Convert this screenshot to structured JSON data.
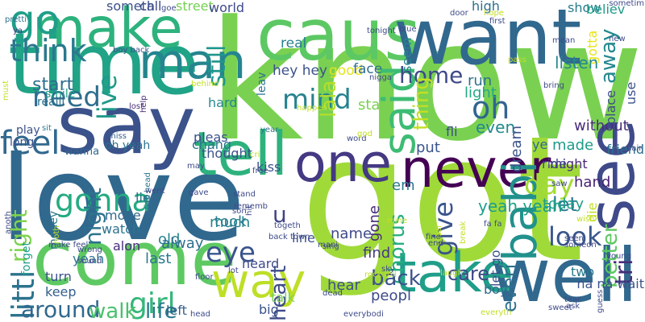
{
  "words": [
    {
      "text": "know",
      "color": "#7ad151"
    },
    {
      "text": "got",
      "color": "#a0da39"
    },
    {
      "text": "love",
      "color": "#31688e"
    },
    {
      "text": "time",
      "color": "#20a386"
    },
    {
      "text": "caus",
      "color": "#5cc863"
    },
    {
      "text": "want",
      "color": "#31688e"
    },
    {
      "text": "say",
      "color": "#3b528b"
    },
    {
      "text": "come",
      "color": "#5ec962"
    },
    {
      "text": "make",
      "color": "#2db27d"
    },
    {
      "text": "see",
      "color": "#3e4a89"
    },
    {
      "text": "well",
      "color": "#31688e"
    },
    {
      "text": "tell",
      "color": "#2db27d"
    },
    {
      "text": "one",
      "color": "#443983"
    },
    {
      "text": "never",
      "color": "#440154"
    },
    {
      "text": "take",
      "color": "#1f9e89"
    },
    {
      "text": "go",
      "color": "#1f9e89"
    },
    {
      "text": "man",
      "color": "#25858e"
    },
    {
      "text": "said",
      "color": "#3dbc74"
    },
    {
      "text": "babi",
      "color": "#21918c"
    },
    {
      "text": "way",
      "color": "#bddf26"
    },
    {
      "text": "gonna",
      "color": "#25ab82"
    },
    {
      "text": "think",
      "color": "#2a788e"
    },
    {
      "text": "mind",
      "color": "#26828e"
    },
    {
      "text": "need",
      "color": "#2e6e8e"
    },
    {
      "text": "feel",
      "color": "#31688e"
    },
    {
      "text": "oh",
      "color": "#32658e"
    },
    {
      "text": "day",
      "color": "#a5db36"
    },
    {
      "text": "give",
      "color": "#3a548c"
    },
    {
      "text": "look",
      "color": "#39568c"
    },
    {
      "text": "eye",
      "color": "#3a548c"
    },
    {
      "text": "girl",
      "color": "#35b779"
    },
    {
      "text": "right",
      "color": "#7fd34e"
    },
    {
      "text": "night",
      "color": "#2c738e"
    },
    {
      "text": "live",
      "color": "#1f9a8a"
    },
    {
      "text": "littl",
      "color": "#2c738e"
    },
    {
      "text": "around",
      "color": "#31688e"
    },
    {
      "text": "walk",
      "color": "#4ac16d"
    },
    {
      "text": "life",
      "color": "#2a788e"
    },
    {
      "text": "still",
      "color": "#1f968b"
    },
    {
      "text": "home",
      "color": "#3e4a89"
    },
    {
      "text": "start",
      "color": "#2e6e8e"
    },
    {
      "text": "better",
      "color": "#5ec962"
    },
    {
      "text": "chorus",
      "color": "#26ad81"
    },
    {
      "text": "let",
      "color": "#2b748e"
    },
    {
      "text": "care",
      "color": "#3e4989"
    },
    {
      "text": "back",
      "color": "#3b518b"
    },
    {
      "text": "tri",
      "color": "#472c7a"
    },
    {
      "text": "heart",
      "color": "#3e4c8a"
    },
    {
      "text": "u",
      "color": "#414487"
    },
    {
      "text": "lala",
      "color": "#b5de2b"
    },
    {
      "text": "thing",
      "color": "#c2df23"
    },
    {
      "text": "away",
      "color": "#23888e"
    },
    {
      "text": "everi",
      "color": "#2d708e"
    },
    {
      "text": "hey hey",
      "color": "#3b528b"
    },
    {
      "text": "real",
      "color": "#277f8e"
    },
    {
      "text": "good",
      "color": "#e5e419"
    },
    {
      "text": "face",
      "color": "#2e6f8e"
    },
    {
      "text": "someth",
      "color": "#3b518b"
    },
    {
      "text": "call",
      "color": "#3e4c8a"
    },
    {
      "text": "street",
      "color": "#75d054"
    },
    {
      "text": "world",
      "color": "#3e4a89"
    },
    {
      "text": "high",
      "color": "#2e6e8e"
    },
    {
      "text": "show",
      "color": "#287d8e"
    },
    {
      "text": "believ",
      "color": "#1e9c89"
    },
    {
      "text": "seem",
      "color": "#25848e"
    },
    {
      "text": "gotta",
      "color": "#e5e419"
    },
    {
      "text": "listen",
      "color": "#24878e"
    },
    {
      "text": "run",
      "color": "#2c728e"
    },
    {
      "text": "light",
      "color": "#22a884"
    },
    {
      "text": "stay",
      "color": "#7ad151"
    },
    {
      "text": "even",
      "color": "#23898e"
    },
    {
      "text": "dream",
      "color": "#3b528b"
    },
    {
      "text": "without",
      "color": "#472d7b"
    },
    {
      "text": "use",
      "color": "#3b518b"
    },
    {
      "text": "friend",
      "color": "#2e6e8e"
    },
    {
      "text": "ye",
      "color": "#31688e"
    },
    {
      "text": "made",
      "color": "#1f9a8a"
    },
    {
      "text": "put",
      "color": "#3a548c"
    },
    {
      "text": "place",
      "color": "#3e4c8a"
    },
    {
      "text": "might",
      "color": "#482878"
    },
    {
      "text": "hand",
      "color": "#482173"
    },
    {
      "text": "ride",
      "color": "#3e4989"
    },
    {
      "text": "die",
      "color": "#c2df23"
    },
    {
      "text": "yeah yeah",
      "color": "#1f9e89"
    },
    {
      "text": "today",
      "color": "#1f9e89"
    },
    {
      "text": "two",
      "color": "#2a788e"
    },
    {
      "text": "let go",
      "color": "#3b528b"
    },
    {
      "text": "boy",
      "color": "#31688e"
    },
    {
      "text": "peopl",
      "color": "#3e4a89"
    },
    {
      "text": "hear",
      "color": "#3b528b"
    },
    {
      "text": "find",
      "color": "#443983"
    },
    {
      "text": "name",
      "color": "#3e4989"
    },
    {
      "text": "gone",
      "color": "#472d7b"
    },
    {
      "text": "em",
      "color": "#2a788e"
    },
    {
      "text": "line",
      "color": "#3b528b"
    },
    {
      "text": "much",
      "color": "#25848e"
    },
    {
      "text": "took",
      "color": "#287d8e"
    },
    {
      "text": "old",
      "color": "#26828e"
    },
    {
      "text": "last",
      "color": "#2a788e"
    },
    {
      "text": "alway",
      "color": "#2e6e8e"
    },
    {
      "text": "lie",
      "color": "#2d708e"
    },
    {
      "text": "move",
      "color": "#31688e"
    },
    {
      "text": "watch",
      "color": "#2c728e"
    },
    {
      "text": "alon",
      "color": "#472d7b"
    },
    {
      "text": "yeah",
      "color": "#2c728e"
    },
    {
      "text": "turn",
      "color": "#3b528b"
    },
    {
      "text": "keep",
      "color": "#355f8d"
    },
    {
      "text": "left",
      "color": "#355f8d"
    },
    {
      "text": "big",
      "color": "#3b528b"
    },
    {
      "text": "talk",
      "color": "#7ad151"
    },
    {
      "text": "na na wait",
      "color": "#3b528b"
    },
    {
      "text": "heard",
      "color": "#3e4a89"
    },
    {
      "text": "thought",
      "color": "#3b528b"
    },
    {
      "text": "pleas",
      "color": "#3b528b"
    },
    {
      "text": "hard",
      "color": "#24878e"
    },
    {
      "text": "kiss",
      "color": "#3b528b"
    },
    {
      "text": "chang",
      "color": "#2c728e"
    },
    {
      "text": "leav",
      "color": "#2c728e"
    },
    {
      "text": "oh yeah",
      "color": "#2c728e"
    },
    {
      "text": "money",
      "color": "#2a788e"
    },
    {
      "text": "forget",
      "color": "#1f9e89"
    },
    {
      "text": "smile",
      "color": "#1f9e89"
    },
    {
      "text": "realli",
      "color": "#2c728e"
    },
    {
      "text": "play",
      "color": "#3b528b"
    },
    {
      "text": "long",
      "color": "#3b528b"
    },
    {
      "text": "wanna",
      "color": "#31688e"
    },
    {
      "text": "sit",
      "color": "#2a788e"
    },
    {
      "text": "miss",
      "color": "#355f8d"
    },
    {
      "text": "must",
      "color": "#c2df23"
    },
    {
      "text": "pretti",
      "color": "#2c728e"
    },
    {
      "text": "ya",
      "color": "#443983"
    },
    {
      "text": "boy back",
      "color": "#3b528b"
    },
    {
      "text": "help",
      "color": "#472d7b"
    },
    {
      "text": "lost",
      "color": "#472d7b"
    },
    {
      "text": "behind",
      "color": "#c2df23"
    },
    {
      "text": "goe",
      "color": "#3e4a89"
    },
    {
      "text": "door",
      "color": "#3e4a89"
    },
    {
      "text": "hope",
      "color": "#c2df23"
    },
    {
      "text": "tonight",
      "color": "#3e4a89"
    },
    {
      "text": "blue",
      "color": "#3e4a89"
    },
    {
      "text": "first",
      "color": "#3e4a89"
    },
    {
      "text": "sometim",
      "color": "#3e4a89"
    },
    {
      "text": "new",
      "color": "#3e4a89"
    },
    {
      "text": "mean",
      "color": "#3e4a89"
    },
    {
      "text": "pass",
      "color": "#c2df23"
    },
    {
      "text": "bring",
      "color": "#3e4a89"
    },
    {
      "text": "nigga",
      "color": "#3e4a89"
    },
    {
      "text": "happen",
      "color": "#c2df23"
    },
    {
      "text": "year",
      "color": "#2a788e"
    },
    {
      "text": "word",
      "color": "#3e4a89"
    },
    {
      "text": "god",
      "color": "#c2df23"
    },
    {
      "text": "fli",
      "color": "#3e4a89"
    },
    {
      "text": "cri",
      "color": "#c2df23"
    },
    {
      "text": "free",
      "color": "#3e4a89"
    },
    {
      "text": "hair",
      "color": "#3e4a89"
    },
    {
      "text": "saw",
      "color": "#3e4a89"
    },
    {
      "text": "wrong",
      "color": "#3e4a89"
    },
    {
      "text": "fish head",
      "color": "#2a788e"
    },
    {
      "text": "went",
      "color": "#3e4a89"
    },
    {
      "text": "may",
      "color": "#3e4a89"
    },
    {
      "text": "gave",
      "color": "#3e4a89"
    },
    {
      "text": "stand",
      "color": "#3e4a89"
    },
    {
      "text": "rememb",
      "color": "#3e4a89"
    },
    {
      "text": "son",
      "color": "#3e4a89"
    },
    {
      "text": "hit",
      "color": "#3e4a89"
    },
    {
      "text": "togeth",
      "color": "#3e4a89"
    },
    {
      "text": "back town",
      "color": "#3e4a89"
    },
    {
      "text": "mani",
      "color": "#3e4a89"
    },
    {
      "text": "sing",
      "color": "#3e4a89"
    },
    {
      "text": "mine",
      "color": "#c2df23"
    },
    {
      "text": "fa fa",
      "color": "#3e4a89"
    },
    {
      "text": "crazi",
      "color": "#c2df23"
    },
    {
      "text": "fine",
      "color": "#3e4a89"
    },
    {
      "text": "end",
      "color": "#3e4a89"
    },
    {
      "text": "wish",
      "color": "#c2df23"
    },
    {
      "text": "seen",
      "color": "#3e4a89"
    },
    {
      "text": "someon",
      "color": "#3e4a89"
    },
    {
      "text": "young",
      "color": "#3e4a89"
    },
    {
      "text": "break",
      "color": "#c2df23"
    },
    {
      "text": "laugh",
      "color": "#c2df23"
    },
    {
      "text": "rock roll",
      "color": "#c2df23"
    },
    {
      "text": "dead",
      "color": "#3e4a89"
    },
    {
      "text": "sky",
      "color": "#3e4a89"
    },
    {
      "text": "everybodi",
      "color": "#3e4a89"
    },
    {
      "text": "everyth",
      "color": "#c2df23"
    },
    {
      "text": "sweet",
      "color": "#3e4a89"
    },
    {
      "text": "ask",
      "color": "#3e4a89"
    },
    {
      "text": "tear",
      "color": "#3e4a89"
    },
    {
      "text": "guess",
      "color": "#3e4a89"
    },
    {
      "text": "lot",
      "color": "#3e4a89"
    },
    {
      "text": "head",
      "color": "#3e4a89"
    },
    {
      "text": "make feel",
      "color": "#3e4a89"
    },
    {
      "text": "sound",
      "color": "#3e4a89"
    },
    {
      "text": "anoth",
      "color": "#3e4a89"
    },
    {
      "text": "floor",
      "color": "#3e4a89"
    },
    {
      "text": "noth",
      "color": "#c2df23"
    }
  ]
}
